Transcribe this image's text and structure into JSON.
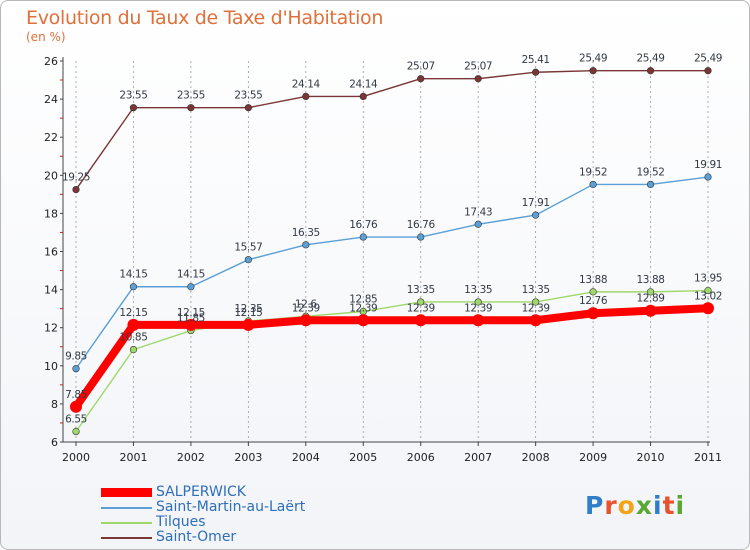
{
  "title": "Evolution du Taux de Taxe d'Habitation",
  "unit_label": "(en %)",
  "logo": {
    "letters": [
      "P",
      "r",
      "o",
      "x",
      "i",
      "t",
      "i"
    ],
    "colors": [
      "#2f7fc8",
      "#e8532e",
      "#f2a419",
      "#5aa832",
      "#2f7fc8",
      "#e8532e",
      "#5aa832"
    ]
  },
  "chart_data": {
    "type": "line",
    "x": [
      "2000",
      "2001",
      "2002",
      "2003",
      "2004",
      "2005",
      "2006",
      "2007",
      "2008",
      "2009",
      "2010",
      "2011"
    ],
    "ylim": [
      6,
      26
    ],
    "yticks": [
      "6",
      "8",
      "10",
      "12",
      "14",
      "16",
      "18",
      "20",
      "22",
      "24",
      "26"
    ],
    "grid": "vertical-dashed",
    "legend": "bottom-left",
    "series": [
      {
        "name": "SALPERWICK",
        "color": "#ff0000",
        "values": [
          7.85,
          12.15,
          12.15,
          12.15,
          12.39,
          12.39,
          12.39,
          12.39,
          12.39,
          12.76,
          12.89,
          13.02
        ],
        "labels": [
          "7.85",
          "12.15",
          "12.15",
          "12.15",
          "12.39",
          "12.39",
          "12.39",
          "12.39",
          "12.39",
          "12.76",
          "12.89",
          "13.02"
        ]
      },
      {
        "name": "Saint-Martin-au-Laërt",
        "color": "#5b9fd6",
        "values": [
          9.85,
          14.15,
          14.15,
          15.57,
          16.35,
          16.76,
          16.76,
          17.43,
          17.91,
          19.52,
          19.52,
          19.91
        ],
        "labels": [
          "9.85",
          "14.15",
          "14.15",
          "15.57",
          "16.35",
          "16.76",
          "16.76",
          "17.43",
          "17.91",
          "19.52",
          "19.52",
          "19.91"
        ]
      },
      {
        "name": "Tilques",
        "color": "#9fd86a",
        "values": [
          6.55,
          10.85,
          11.85,
          12.35,
          12.6,
          12.85,
          13.35,
          13.35,
          13.35,
          13.88,
          13.88,
          13.95
        ],
        "labels": [
          "6.55",
          "10.85",
          "11.85",
          "12.35",
          "12.6",
          "12.85",
          "13.35",
          "13.35",
          "13.35",
          "13.88",
          "13.88",
          "13.95"
        ]
      },
      {
        "name": "Saint-Omer",
        "color": "#7a3535",
        "values": [
          19.25,
          23.55,
          23.55,
          23.55,
          24.14,
          24.14,
          25.07,
          25.07,
          25.41,
          25.49,
          25.49,
          25.49
        ],
        "labels": [
          "19.25",
          "23.55",
          "23.55",
          "23.55",
          "24.14",
          "24.14",
          "25.07",
          "25.07",
          "25.41",
          "25.49",
          "25.49",
          "25.49"
        ]
      }
    ]
  }
}
